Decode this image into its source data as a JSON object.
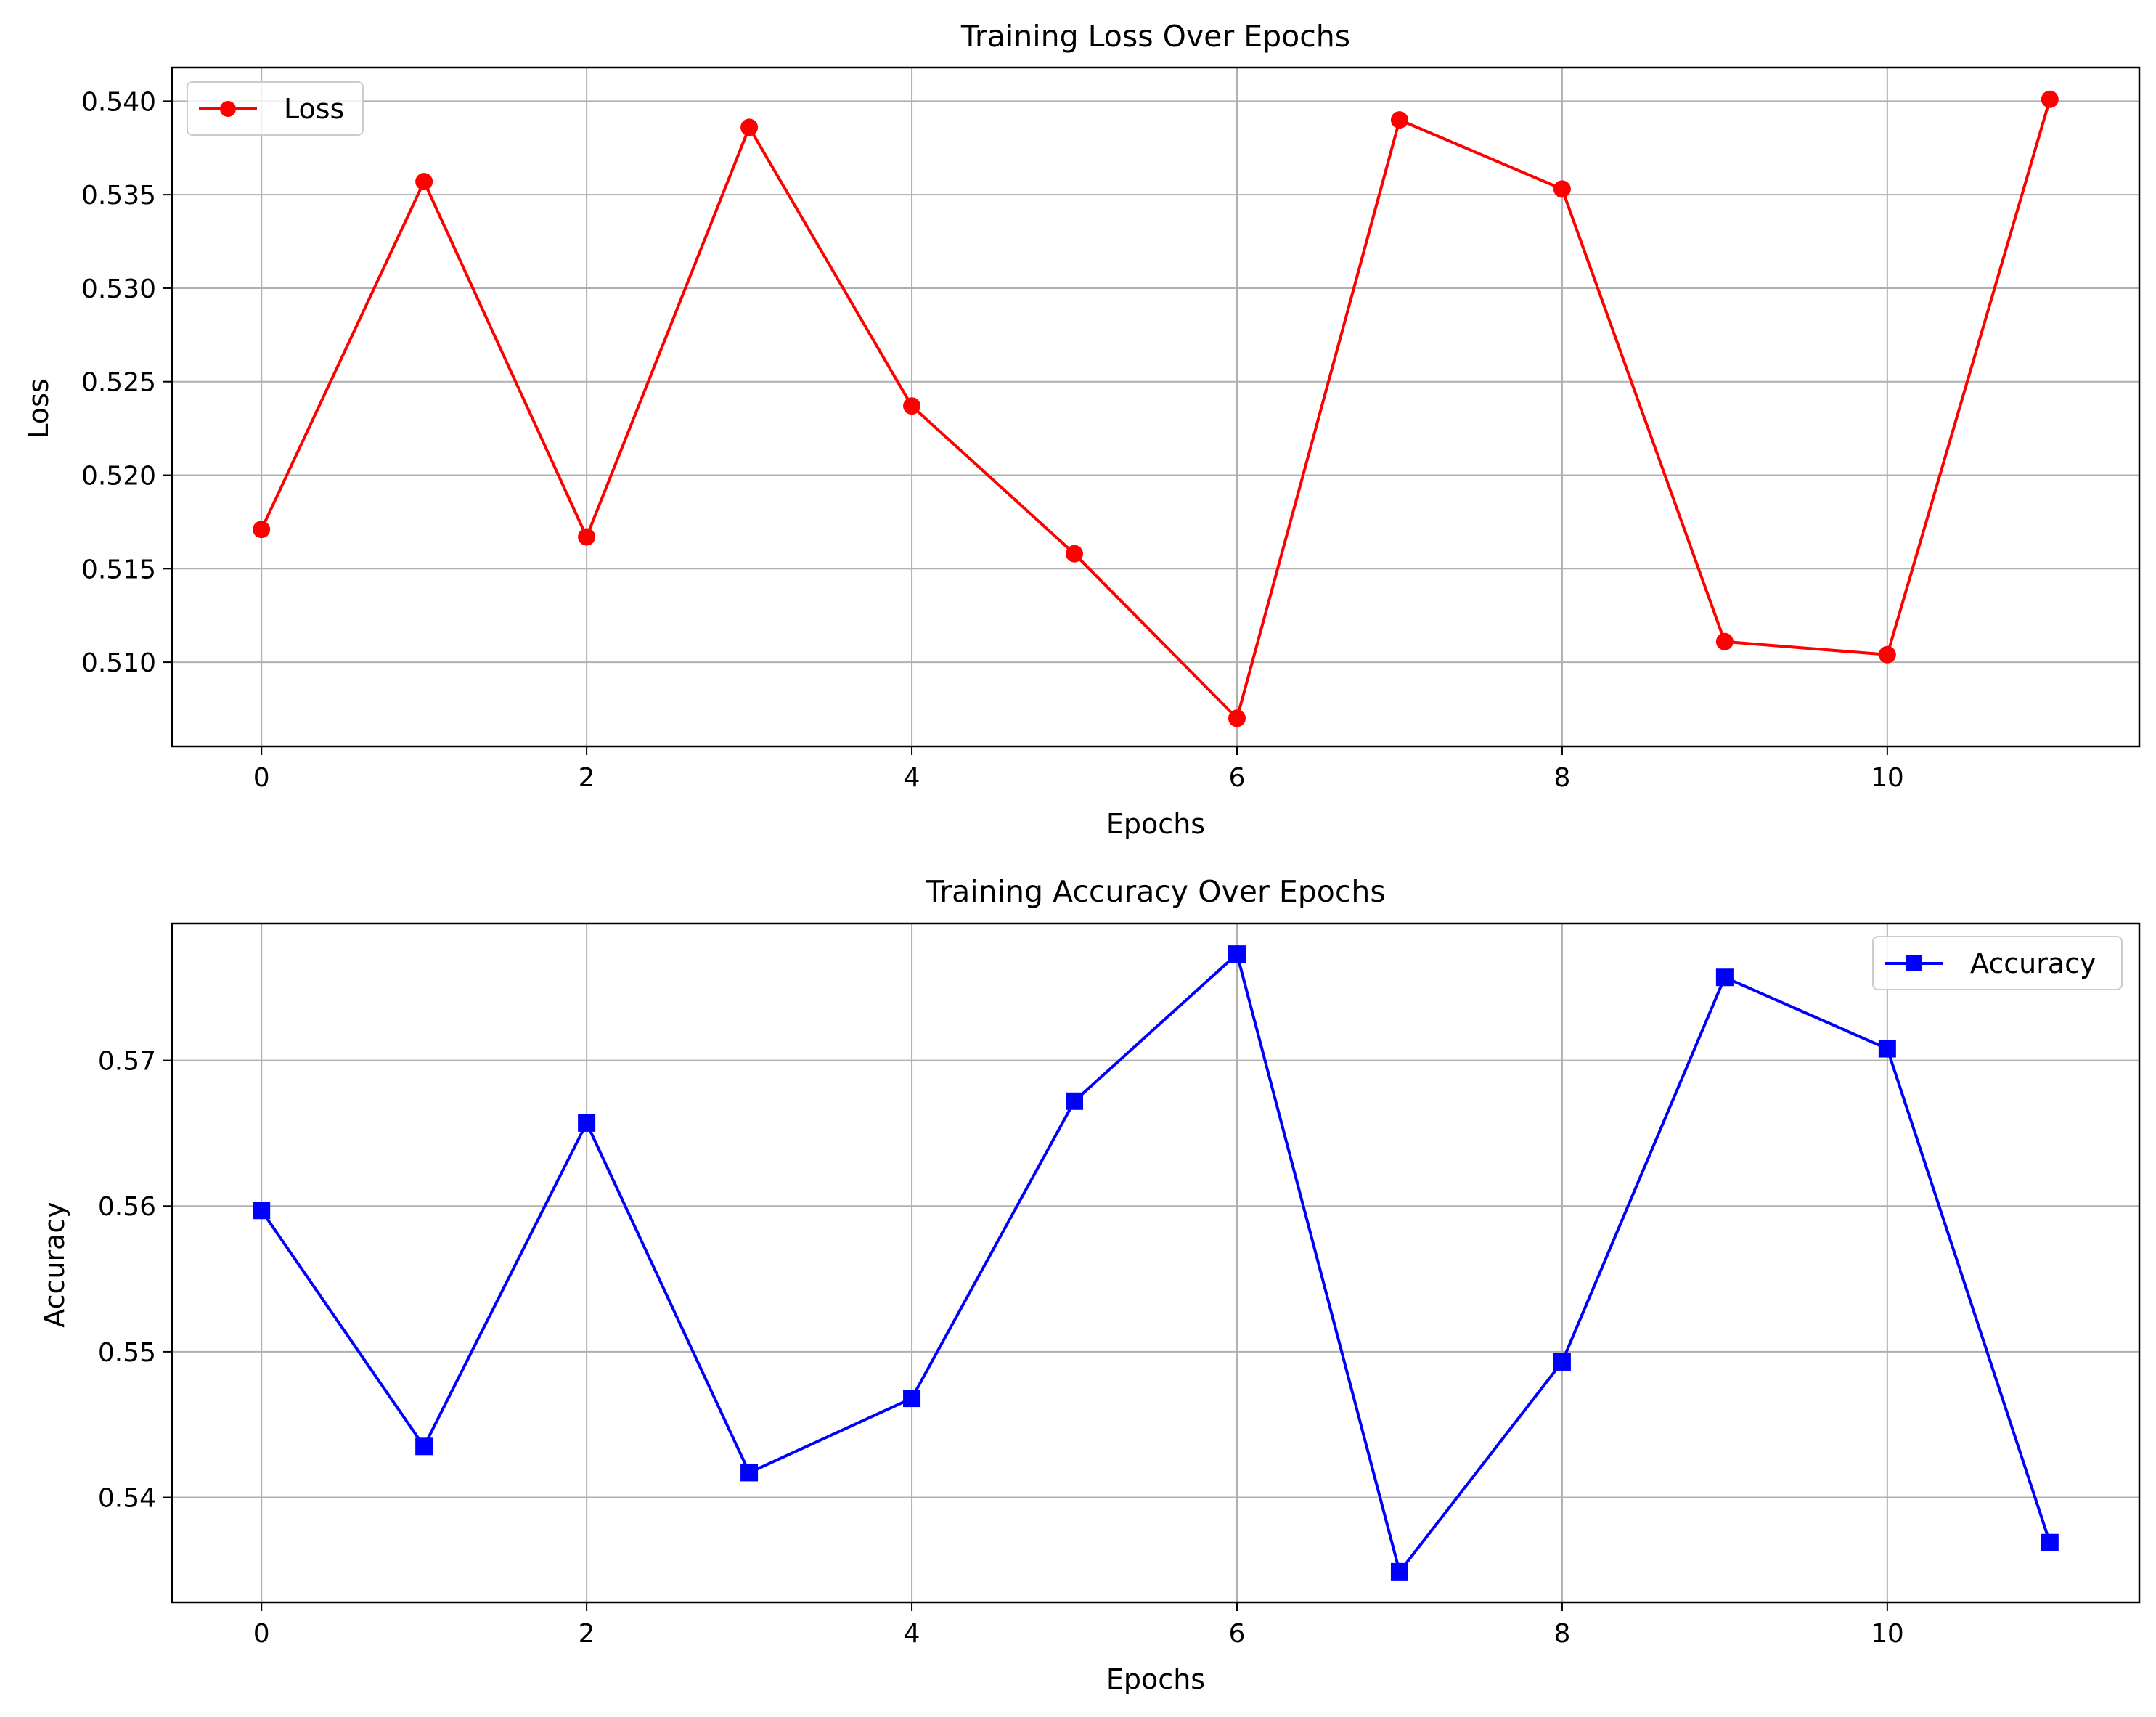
{
  "chart_data": [
    {
      "type": "line",
      "title": "Training Loss Over Epochs",
      "xlabel": "Epochs",
      "ylabel": "Loss",
      "x": [
        0,
        1,
        2,
        3,
        4,
        5,
        6,
        7,
        8,
        9,
        10,
        11
      ],
      "series": [
        {
          "name": "Loss",
          "color": "#ff0000",
          "marker": "circle",
          "values": [
            0.5171,
            0.5357,
            0.5167,
            0.5386,
            0.5237,
            0.5158,
            0.507,
            0.539,
            0.5353,
            0.5111,
            0.5104,
            0.5401
          ]
        }
      ],
      "xlim": [
        -0.55,
        11.55
      ],
      "ylim": [
        0.5055,
        0.5418
      ],
      "xticks": [
        0,
        2,
        4,
        6,
        8,
        10
      ],
      "xtick_labels": [
        "0",
        "2",
        "4",
        "6",
        "8",
        "10"
      ],
      "yticks": [
        0.51,
        0.515,
        0.52,
        0.525,
        0.53,
        0.535,
        0.54
      ],
      "ytick_labels": [
        "0.510",
        "0.515",
        "0.520",
        "0.525",
        "0.530",
        "0.535",
        "0.540"
      ],
      "grid": true,
      "legend": "upper-left"
    },
    {
      "type": "line",
      "title": "Training Accuracy Over Epochs",
      "xlabel": "Epochs",
      "ylabel": "Accuracy",
      "x": [
        0,
        1,
        2,
        3,
        4,
        5,
        6,
        7,
        8,
        9,
        10,
        11
      ],
      "series": [
        {
          "name": "Accuracy",
          "color": "#0000ff",
          "marker": "square",
          "values": [
            0.5597,
            0.5435,
            0.5657,
            0.5417,
            0.5468,
            0.5672,
            0.5773,
            0.5349,
            0.5493,
            0.5757,
            0.5708,
            0.5369
          ]
        }
      ],
      "xlim": [
        -0.55,
        11.55
      ],
      "ylim": [
        0.5328,
        0.5794
      ],
      "xticks": [
        0,
        2,
        4,
        6,
        8,
        10
      ],
      "xtick_labels": [
        "0",
        "2",
        "4",
        "6",
        "8",
        "10"
      ],
      "yticks": [
        0.54,
        0.55,
        0.56,
        0.57
      ],
      "ytick_labels": [
        "0.54",
        "0.55",
        "0.56",
        "0.57"
      ],
      "grid": true,
      "legend": "upper-right"
    }
  ]
}
